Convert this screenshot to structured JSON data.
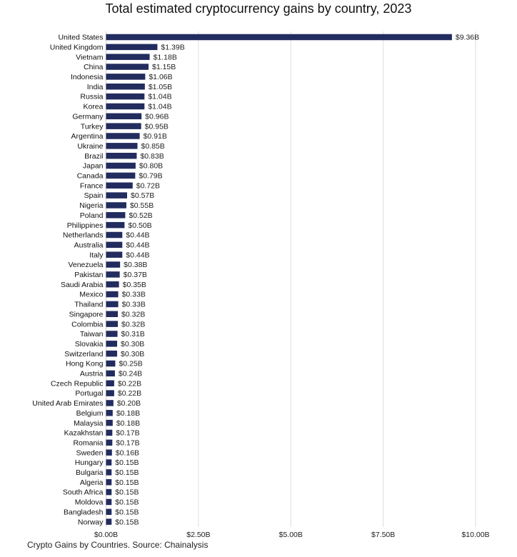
{
  "caption": "Crypto Gains by Countries. Source: Chainalysis",
  "chart_data": {
    "type": "bar",
    "orientation": "horizontal",
    "title": "Total estimated cryptocurrency gains by country, 2023",
    "xlabel": "",
    "ylabel": "",
    "xlim": [
      0,
      10
    ],
    "xticks": [
      0,
      2.5,
      5,
      7.5,
      10
    ],
    "xtick_labels": [
      "$0.00B",
      "$2.50B",
      "$5.00B",
      "$7.50B",
      "$10.00B"
    ],
    "grid": "vertical",
    "bar_color": "#222c5e",
    "categories": [
      "United States",
      "United Kingdom",
      "Vietnam",
      "China",
      "Indonesia",
      "India",
      "Russia",
      "Korea",
      "Germany",
      "Turkey",
      "Argentina",
      "Ukraine",
      "Brazil",
      "Japan",
      "Canada",
      "France",
      "Spain",
      "Nigeria",
      "Poland",
      "Philippines",
      "Netherlands",
      "Australia",
      "Italy",
      "Venezuela",
      "Pakistan",
      "Saudi Arabia",
      "Mexico",
      "Thailand",
      "Singapore",
      "Colombia",
      "Taiwan",
      "Slovakia",
      "Switzerland",
      "Hong Kong",
      "Austria",
      "Czech Republic",
      "Portugal",
      "United Arab Emirates",
      "Belgium",
      "Malaysia",
      "Kazakhstan",
      "Romania",
      "Sweden",
      "Hungary",
      "Bulgaria",
      "Algeria",
      "South Africa",
      "Moldova",
      "Bangladesh",
      "Norway"
    ],
    "values": [
      9.36,
      1.39,
      1.18,
      1.15,
      1.06,
      1.05,
      1.04,
      1.04,
      0.96,
      0.95,
      0.91,
      0.85,
      0.83,
      0.8,
      0.79,
      0.72,
      0.57,
      0.55,
      0.52,
      0.5,
      0.44,
      0.44,
      0.44,
      0.38,
      0.37,
      0.35,
      0.33,
      0.33,
      0.32,
      0.32,
      0.31,
      0.3,
      0.3,
      0.25,
      0.24,
      0.22,
      0.22,
      0.2,
      0.18,
      0.18,
      0.17,
      0.17,
      0.16,
      0.15,
      0.15,
      0.15,
      0.15,
      0.15,
      0.15,
      0.15
    ],
    "value_labels": [
      "$9.36B",
      "$1.39B",
      "$1.18B",
      "$1.15B",
      "$1.06B",
      "$1.05B",
      "$1.04B",
      "$1.04B",
      "$0.96B",
      "$0.95B",
      "$0.91B",
      "$0.85B",
      "$0.83B",
      "$0.80B",
      "$0.79B",
      "$0.72B",
      "$0.57B",
      "$0.55B",
      "$0.52B",
      "$0.50B",
      "$0.44B",
      "$0.44B",
      "$0.44B",
      "$0.38B",
      "$0.37B",
      "$0.35B",
      "$0.33B",
      "$0.33B",
      "$0.32B",
      "$0.32B",
      "$0.31B",
      "$0.30B",
      "$0.30B",
      "$0.25B",
      "$0.24B",
      "$0.22B",
      "$0.22B",
      "$0.20B",
      "$0.18B",
      "$0.18B",
      "$0.17B",
      "$0.17B",
      "$0.16B",
      "$0.15B",
      "$0.15B",
      "$0.15B",
      "$0.15B",
      "$0.15B",
      "$0.15B",
      "$0.15B"
    ]
  }
}
